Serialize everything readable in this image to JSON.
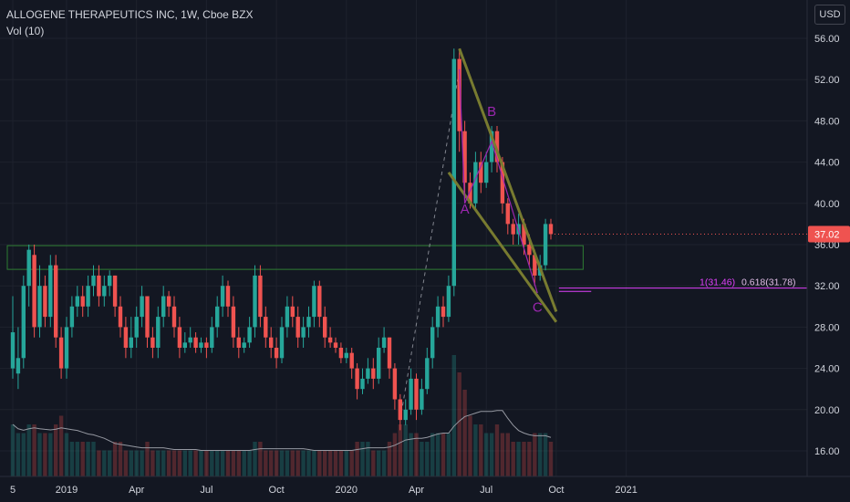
{
  "header": {
    "title": "ALLOGENE THERAPEUTICS INC, 1W, Cboe BZX",
    "indicator": "Vol (10)",
    "currency": "USD"
  },
  "chart_data": {
    "type": "candlestick",
    "y_ticks": [
      "56.00",
      "52.00",
      "48.00",
      "44.00",
      "40.00",
      "36.00",
      "32.00",
      "28.00",
      "24.00",
      "20.00",
      "16.00"
    ],
    "y_tick_values": [
      56,
      52,
      48,
      44,
      40,
      36,
      32,
      28,
      24,
      20,
      16
    ],
    "x_ticks": [
      {
        "label": "5",
        "week": 0
      },
      {
        "label": "2019",
        "week": 10
      },
      {
        "label": "Apr",
        "week": 23
      },
      {
        "label": "Jul",
        "week": 36
      },
      {
        "label": "Oct",
        "week": 49
      },
      {
        "label": "2020",
        "week": 62
      },
      {
        "label": "Apr",
        "week": 75
      },
      {
        "label": "Jul",
        "week": 88
      },
      {
        "label": "Oct",
        "week": 101
      },
      {
        "label": "2021",
        "week": 114
      }
    ],
    "ylim": [
      14,
      58
    ],
    "last_price": "37.02",
    "last_price_value": 37.02,
    "colors": {
      "up": "#26a69a",
      "down": "#ef5350",
      "channel": "#787b30",
      "box": "#2e7d32",
      "abc": "#9c27b0",
      "volume": "#434651"
    },
    "candles": [
      [
        24,
        27.5,
        23,
        31
      ],
      [
        23.5,
        25,
        22,
        28
      ],
      [
        25,
        32,
        24,
        33
      ],
      [
        32,
        35.5,
        30,
        36
      ],
      [
        35,
        28,
        27,
        36
      ],
      [
        28,
        32,
        27,
        34
      ],
      [
        32,
        29,
        28,
        33
      ],
      [
        29,
        34,
        28,
        35
      ],
      [
        34,
        27,
        26,
        35
      ],
      [
        27,
        24,
        23,
        28
      ],
      [
        24,
        28,
        23,
        29
      ],
      [
        28,
        30,
        27,
        31
      ],
      [
        30,
        31,
        29,
        32
      ],
      [
        31,
        30,
        29,
        32
      ],
      [
        30,
        32,
        29,
        33
      ],
      [
        32,
        33,
        31,
        34
      ],
      [
        33,
        31,
        30,
        34
      ],
      [
        31,
        32,
        30,
        33
      ],
      [
        32,
        33,
        31,
        33.5
      ],
      [
        33,
        30,
        29,
        33
      ],
      [
        30,
        28,
        27,
        31
      ],
      [
        28,
        26,
        25,
        29
      ],
      [
        26,
        27,
        25,
        29
      ],
      [
        27,
        29,
        26,
        30
      ],
      [
        29,
        31,
        28,
        32
      ],
      [
        31,
        27,
        26,
        31
      ],
      [
        27,
        26,
        25,
        28
      ],
      [
        26,
        29,
        25,
        30
      ],
      [
        29,
        31,
        28,
        32
      ],
      [
        31,
        30,
        29,
        31.5
      ],
      [
        30,
        28,
        27,
        31
      ],
      [
        28,
        26,
        25,
        29
      ],
      [
        26,
        26.5,
        25.5,
        27.5
      ],
      [
        26.5,
        27,
        26,
        28
      ],
      [
        27,
        26,
        25.5,
        27.5
      ],
      [
        26,
        26.5,
        25.5,
        27
      ],
      [
        26.5,
        26,
        25,
        27
      ],
      [
        26,
        28,
        25.5,
        29
      ],
      [
        28,
        30,
        27,
        31
      ],
      [
        30,
        32,
        29,
        33
      ],
      [
        32,
        30,
        29,
        32.5
      ],
      [
        30,
        27,
        26,
        31
      ],
      [
        27,
        26,
        25,
        28
      ],
      [
        26,
        26.5,
        25.5,
        27
      ],
      [
        26.5,
        28,
        26,
        29
      ],
      [
        28,
        33,
        27,
        34
      ],
      [
        33,
        29,
        28,
        34
      ],
      [
        29,
        27,
        26,
        30
      ],
      [
        27,
        26,
        25,
        28
      ],
      [
        26,
        25,
        24,
        27
      ],
      [
        25,
        28,
        24.5,
        29
      ],
      [
        28,
        30,
        27,
        31
      ],
      [
        30,
        29,
        28,
        31
      ],
      [
        29,
        27,
        26,
        30
      ],
      [
        27,
        28,
        26,
        29
      ],
      [
        28,
        29,
        27,
        30
      ],
      [
        29,
        32,
        28,
        32.5
      ],
      [
        32,
        29,
        28,
        32.5
      ],
      [
        29,
        27,
        26,
        30
      ],
      [
        27,
        26.5,
        26,
        28
      ],
      [
        26.5,
        26,
        25.5,
        27
      ],
      [
        26,
        25,
        24.5,
        26.5
      ],
      [
        25,
        25.5,
        24.5,
        26
      ],
      [
        25.5,
        24,
        23,
        26
      ],
      [
        24,
        22,
        21,
        24.5
      ],
      [
        22,
        23,
        21.5,
        24
      ],
      [
        23,
        24,
        22.5,
        25
      ],
      [
        24,
        23,
        22,
        25
      ],
      [
        23,
        26,
        22.5,
        27
      ],
      [
        26,
        27,
        25.5,
        28
      ],
      [
        27,
        24,
        23,
        27
      ],
      [
        24,
        21,
        20,
        24.5
      ],
      [
        21,
        19,
        18,
        21.5
      ],
      [
        19,
        20,
        18.5,
        21
      ],
      [
        20,
        23,
        19.5,
        24
      ],
      [
        23,
        20,
        19,
        23.5
      ],
      [
        20,
        22,
        19.5,
        23
      ],
      [
        22,
        25,
        21.5,
        26
      ],
      [
        25,
        28,
        24,
        29
      ],
      [
        28,
        30,
        27,
        31
      ],
      [
        30,
        29,
        28,
        31
      ],
      [
        29,
        32,
        28.5,
        33
      ],
      [
        32,
        54,
        31,
        55
      ],
      [
        54,
        47,
        45,
        55
      ],
      [
        47,
        42,
        40,
        48
      ],
      [
        42,
        40,
        39.5,
        43
      ],
      [
        40,
        44,
        39.5,
        45
      ],
      [
        44,
        42,
        41,
        45
      ],
      [
        42,
        44,
        41.5,
        45
      ],
      [
        44,
        47,
        43,
        47.5
      ],
      [
        47,
        44,
        43,
        47.5
      ],
      [
        44,
        40,
        39,
        44.5
      ],
      [
        40,
        38,
        37,
        40.5
      ],
      [
        38,
        37,
        36,
        38.5
      ],
      [
        37,
        38,
        36,
        39
      ],
      [
        38,
        36,
        35,
        38.5
      ],
      [
        36,
        35,
        34,
        37
      ],
      [
        35,
        33,
        32,
        35.5
      ],
      [
        33,
        34,
        32.5,
        35
      ],
      [
        34,
        38,
        33.5,
        38.5
      ],
      [
        38,
        37.02,
        36.5,
        38.5
      ]
    ],
    "volumes": [
      6,
      5,
      5,
      6,
      6,
      5,
      5,
      5,
      6,
      7,
      5,
      4,
      4,
      4,
      4,
      4,
      3,
      3,
      3,
      4,
      4,
      3,
      3,
      3,
      3,
      4,
      3,
      3,
      3,
      3,
      3,
      3,
      3,
      3,
      3,
      3,
      3,
      3,
      3,
      3,
      3,
      3,
      3,
      3,
      3,
      4,
      4,
      3,
      3,
      3,
      3,
      3,
      3,
      3,
      3,
      3,
      3,
      3,
      3,
      3,
      3,
      3,
      3,
      3,
      4,
      4,
      4,
      3,
      3,
      3,
      4,
      5,
      6,
      6,
      5,
      5,
      4,
      4,
      5,
      5,
      5,
      5,
      14,
      12,
      10,
      7,
      6,
      6,
      5,
      5,
      6,
      5,
      5,
      4,
      4,
      4,
      4,
      5,
      5,
      5,
      4
    ],
    "annotations": {
      "labels": [
        {
          "text": "A",
          "week": 84,
          "price": 39
        },
        {
          "text": "B",
          "week": 89,
          "price": 48.5
        },
        {
          "text": "C",
          "week": 97.5,
          "price": 29.5
        }
      ],
      "fib_label_1": "1(31.46)",
      "fib_label_2": "0.618(31.78)",
      "fib_values": [
        31.46,
        31.78
      ],
      "channel_upper": [
        {
          "week": 83,
          "price": 55
        },
        {
          "week": 101,
          "price": 29.5
        }
      ],
      "channel_lower": [
        {
          "week": 81,
          "price": 43
        },
        {
          "week": 101,
          "price": 28.5
        }
      ],
      "box": {
        "week_start": 0,
        "week_end": 106,
        "price_top": 35.9,
        "price_bottom": 33.6
      },
      "dashed_line": [
        {
          "week": 72,
          "price": 19
        },
        {
          "week": 83,
          "price": 53
        }
      ],
      "abc_path": [
        {
          "week": 83,
          "price": 53
        },
        {
          "week": 84,
          "price": 40
        },
        {
          "week": 89,
          "price": 46
        },
        {
          "week": 97.5,
          "price": 31.3
        }
      ]
    }
  }
}
